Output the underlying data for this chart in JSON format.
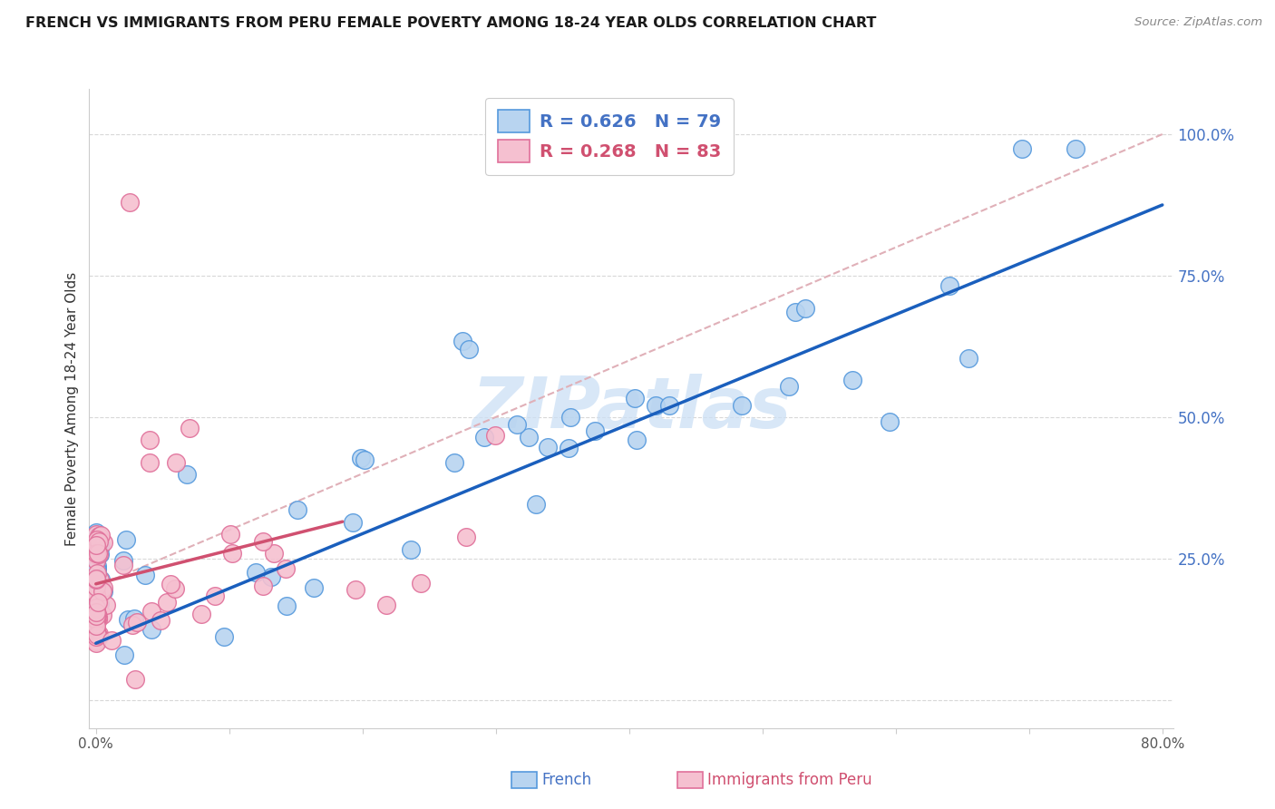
{
  "title": "FRENCH VS IMMIGRANTS FROM PERU FEMALE POVERTY AMONG 18-24 YEAR OLDS CORRELATION CHART",
  "source": "Source: ZipAtlas.com",
  "ylabel": "Female Poverty Among 18-24 Year Olds",
  "watermark": "ZIPatlas",
  "xlim": [
    -0.005,
    0.808
  ],
  "ylim": [
    -0.05,
    1.08
  ],
  "xticks": [
    0.0,
    0.1,
    0.2,
    0.3,
    0.4,
    0.5,
    0.6,
    0.7,
    0.8
  ],
  "xticklabels": [
    "0.0%",
    "",
    "",
    "",
    "",
    "",
    "",
    "",
    "80.0%"
  ],
  "yticks": [
    0.0,
    0.25,
    0.5,
    0.75,
    1.0
  ],
  "yticklabels": [
    "",
    "25.0%",
    "50.0%",
    "75.0%",
    "100.0%"
  ],
  "french_R": 0.626,
  "french_N": 79,
  "peru_R": 0.268,
  "peru_N": 83,
  "french_color": "#b8d4f0",
  "french_edge": "#5599dd",
  "peru_color": "#f5c0d0",
  "peru_edge": "#e0709a",
  "french_line_color": "#1a5fbd",
  "peru_line_color": "#d05070",
  "ref_line_color": "#e0b0b8",
  "french_line_x": [
    0.0,
    0.8
  ],
  "french_line_y": [
    0.1,
    0.875
  ],
  "peru_line_x": [
    0.0,
    0.185
  ],
  "peru_line_y": [
    0.205,
    0.315
  ],
  "ref_line_x": [
    0.0,
    0.8
  ],
  "ref_line_y": [
    0.2,
    1.0
  ],
  "yticklabel_color": "#4472c4",
  "xticklabel_color": "#555555",
  "ylabel_color": "#333333",
  "grid_color": "#d8d8d8",
  "spine_color": "#cccccc",
  "legend_french_text": "R = 0.626   N = 79",
  "legend_peru_text": "R = 0.268   N = 83",
  "legend_french_color": "#4472c4",
  "legend_peru_color": "#d05070",
  "bottom_legend_french": "French",
  "bottom_legend_peru": "Immigrants from Peru"
}
